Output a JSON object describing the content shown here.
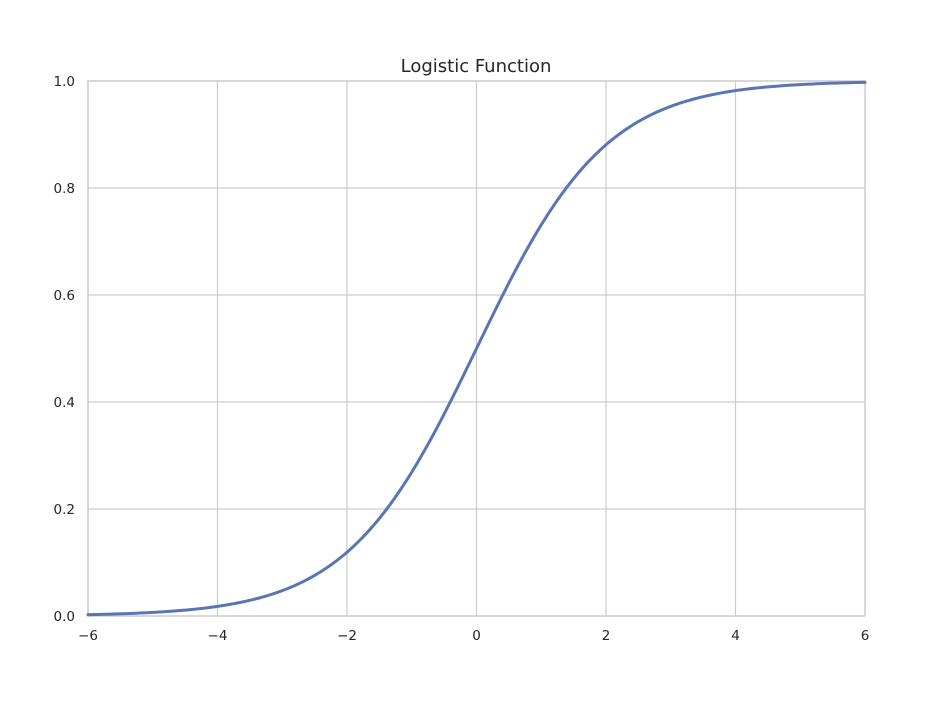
{
  "chart_data": {
    "type": "line",
    "title": "Logistic Function",
    "xlabel": "",
    "ylabel": "",
    "xlim": [
      -6,
      6
    ],
    "ylim": [
      0.0,
      1.0
    ],
    "grid": true,
    "x_ticks": [
      -6,
      -4,
      -2,
      0,
      2,
      4,
      6
    ],
    "x_tick_labels": [
      "−6",
      "−4",
      "−2",
      "0",
      "2",
      "4",
      "6"
    ],
    "y_ticks": [
      0.0,
      0.2,
      0.4,
      0.6,
      0.8,
      1.0
    ],
    "y_tick_labels": [
      "0.0",
      "0.2",
      "0.4",
      "0.6",
      "0.8",
      "1.0"
    ],
    "series": [
      {
        "name": "logistic",
        "color": "#5975b5",
        "x": [
          -6,
          -5.5,
          -5,
          -4.5,
          -4,
          -3.5,
          -3,
          -2.5,
          -2,
          -1.5,
          -1,
          -0.5,
          0,
          0.5,
          1,
          1.5,
          2,
          2.5,
          3,
          3.5,
          4,
          4.5,
          5,
          5.5,
          6
        ],
        "y": [
          0.0025,
          0.0041,
          0.0067,
          0.011,
          0.018,
          0.0293,
          0.0474,
          0.0759,
          0.1192,
          0.1824,
          0.2689,
          0.3775,
          0.5,
          0.6225,
          0.7311,
          0.8176,
          0.8808,
          0.9241,
          0.9526,
          0.9707,
          0.982,
          0.989,
          0.9933,
          0.9959,
          0.9975
        ]
      }
    ]
  }
}
